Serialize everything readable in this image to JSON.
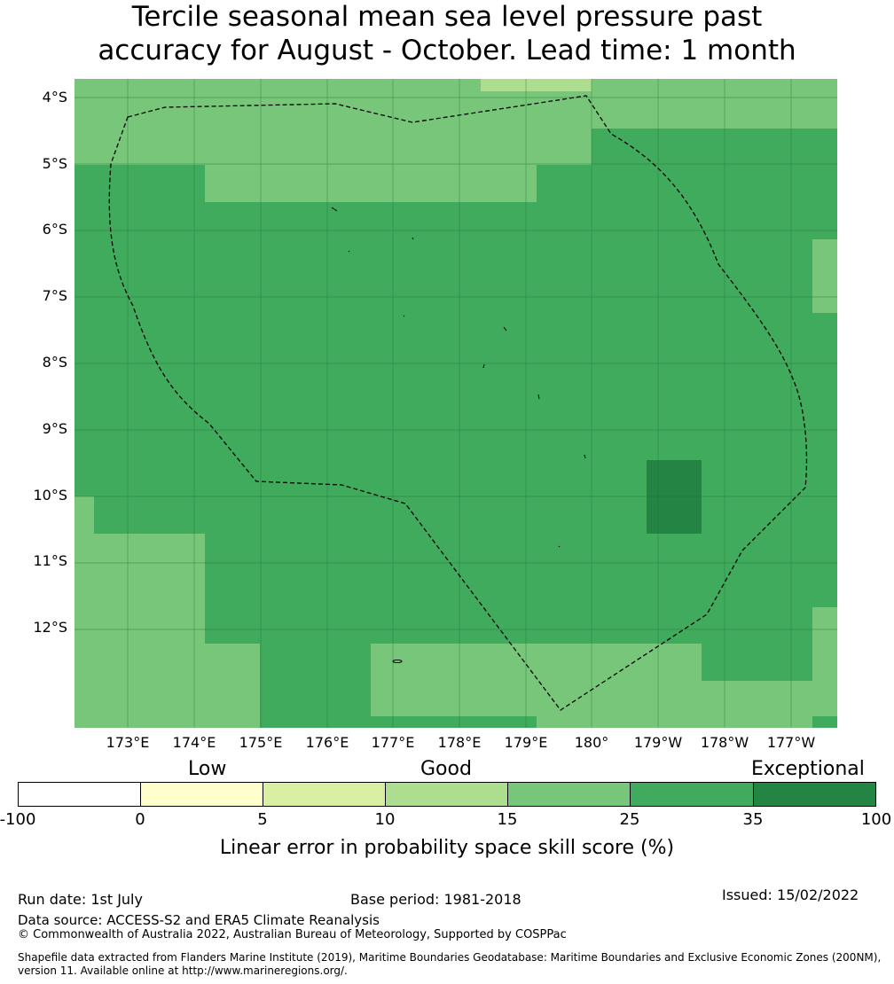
{
  "title": {
    "line1": "Tercile seasonal mean sea level pressure past",
    "line2": "accuracy for August - October. Lead time: 1 month"
  },
  "map": {
    "lat_labels": [
      "4°S",
      "5°S",
      "6°S",
      "7°S",
      "8°S",
      "9°S",
      "10°S",
      "11°S",
      "12°S"
    ],
    "lon_labels": [
      "173°E",
      "174°E",
      "175°E",
      "176°E",
      "177°E",
      "178°E",
      "179°E",
      "180°",
      "179°W",
      "178°W",
      "177°W"
    ],
    "boundary": "exclusive economic zone, dashed black",
    "dominant_class": "25-35",
    "patches": [
      {
        "region": "north band",
        "class": "15-25"
      },
      {
        "region": "north-central strip",
        "class": "10-15"
      },
      {
        "region": "west coast",
        "class": "15-25"
      },
      {
        "region": "south-west",
        "class": "15-25"
      },
      {
        "region": "south-central",
        "class": "15-25"
      },
      {
        "region": "east edge",
        "class": "15-25"
      },
      {
        "region": "south-east interior",
        "class": "35-100"
      }
    ]
  },
  "colorbar": {
    "headings": {
      "low": "Low",
      "good": "Good",
      "exceptional": "Exceptional"
    },
    "ticks": [
      "-100",
      "0",
      "5",
      "10",
      "15",
      "25",
      "35",
      "100"
    ],
    "colors": [
      "#ffffff",
      "#ffffcc",
      "#d9f0a3",
      "#addd8e",
      "#78c679",
      "#41ab5d",
      "#238443"
    ],
    "label": "Linear error in probability space skill score (%)"
  },
  "footer": {
    "run_date": "Run date: 1st July",
    "base_period": "Base period: 1981-2018",
    "issued": "Issued: 15/02/2022",
    "data_source": "Data source: ACCESS-S2 and ERA5 Climate Reanalysis",
    "copyright": "© Commonwealth of Australia 2022, Australian Bureau of Meteorology, Supported by COSPPac",
    "shapefile_line1": "Shapefile data extracted from Flanders Marine Institute (2019), Maritime Boundaries Geodatabase: Maritime Boundaries and Exclusive Economic Zones (200NM),",
    "shapefile_line2": "version 11. Available online at http://www.marineregions.org/."
  }
}
